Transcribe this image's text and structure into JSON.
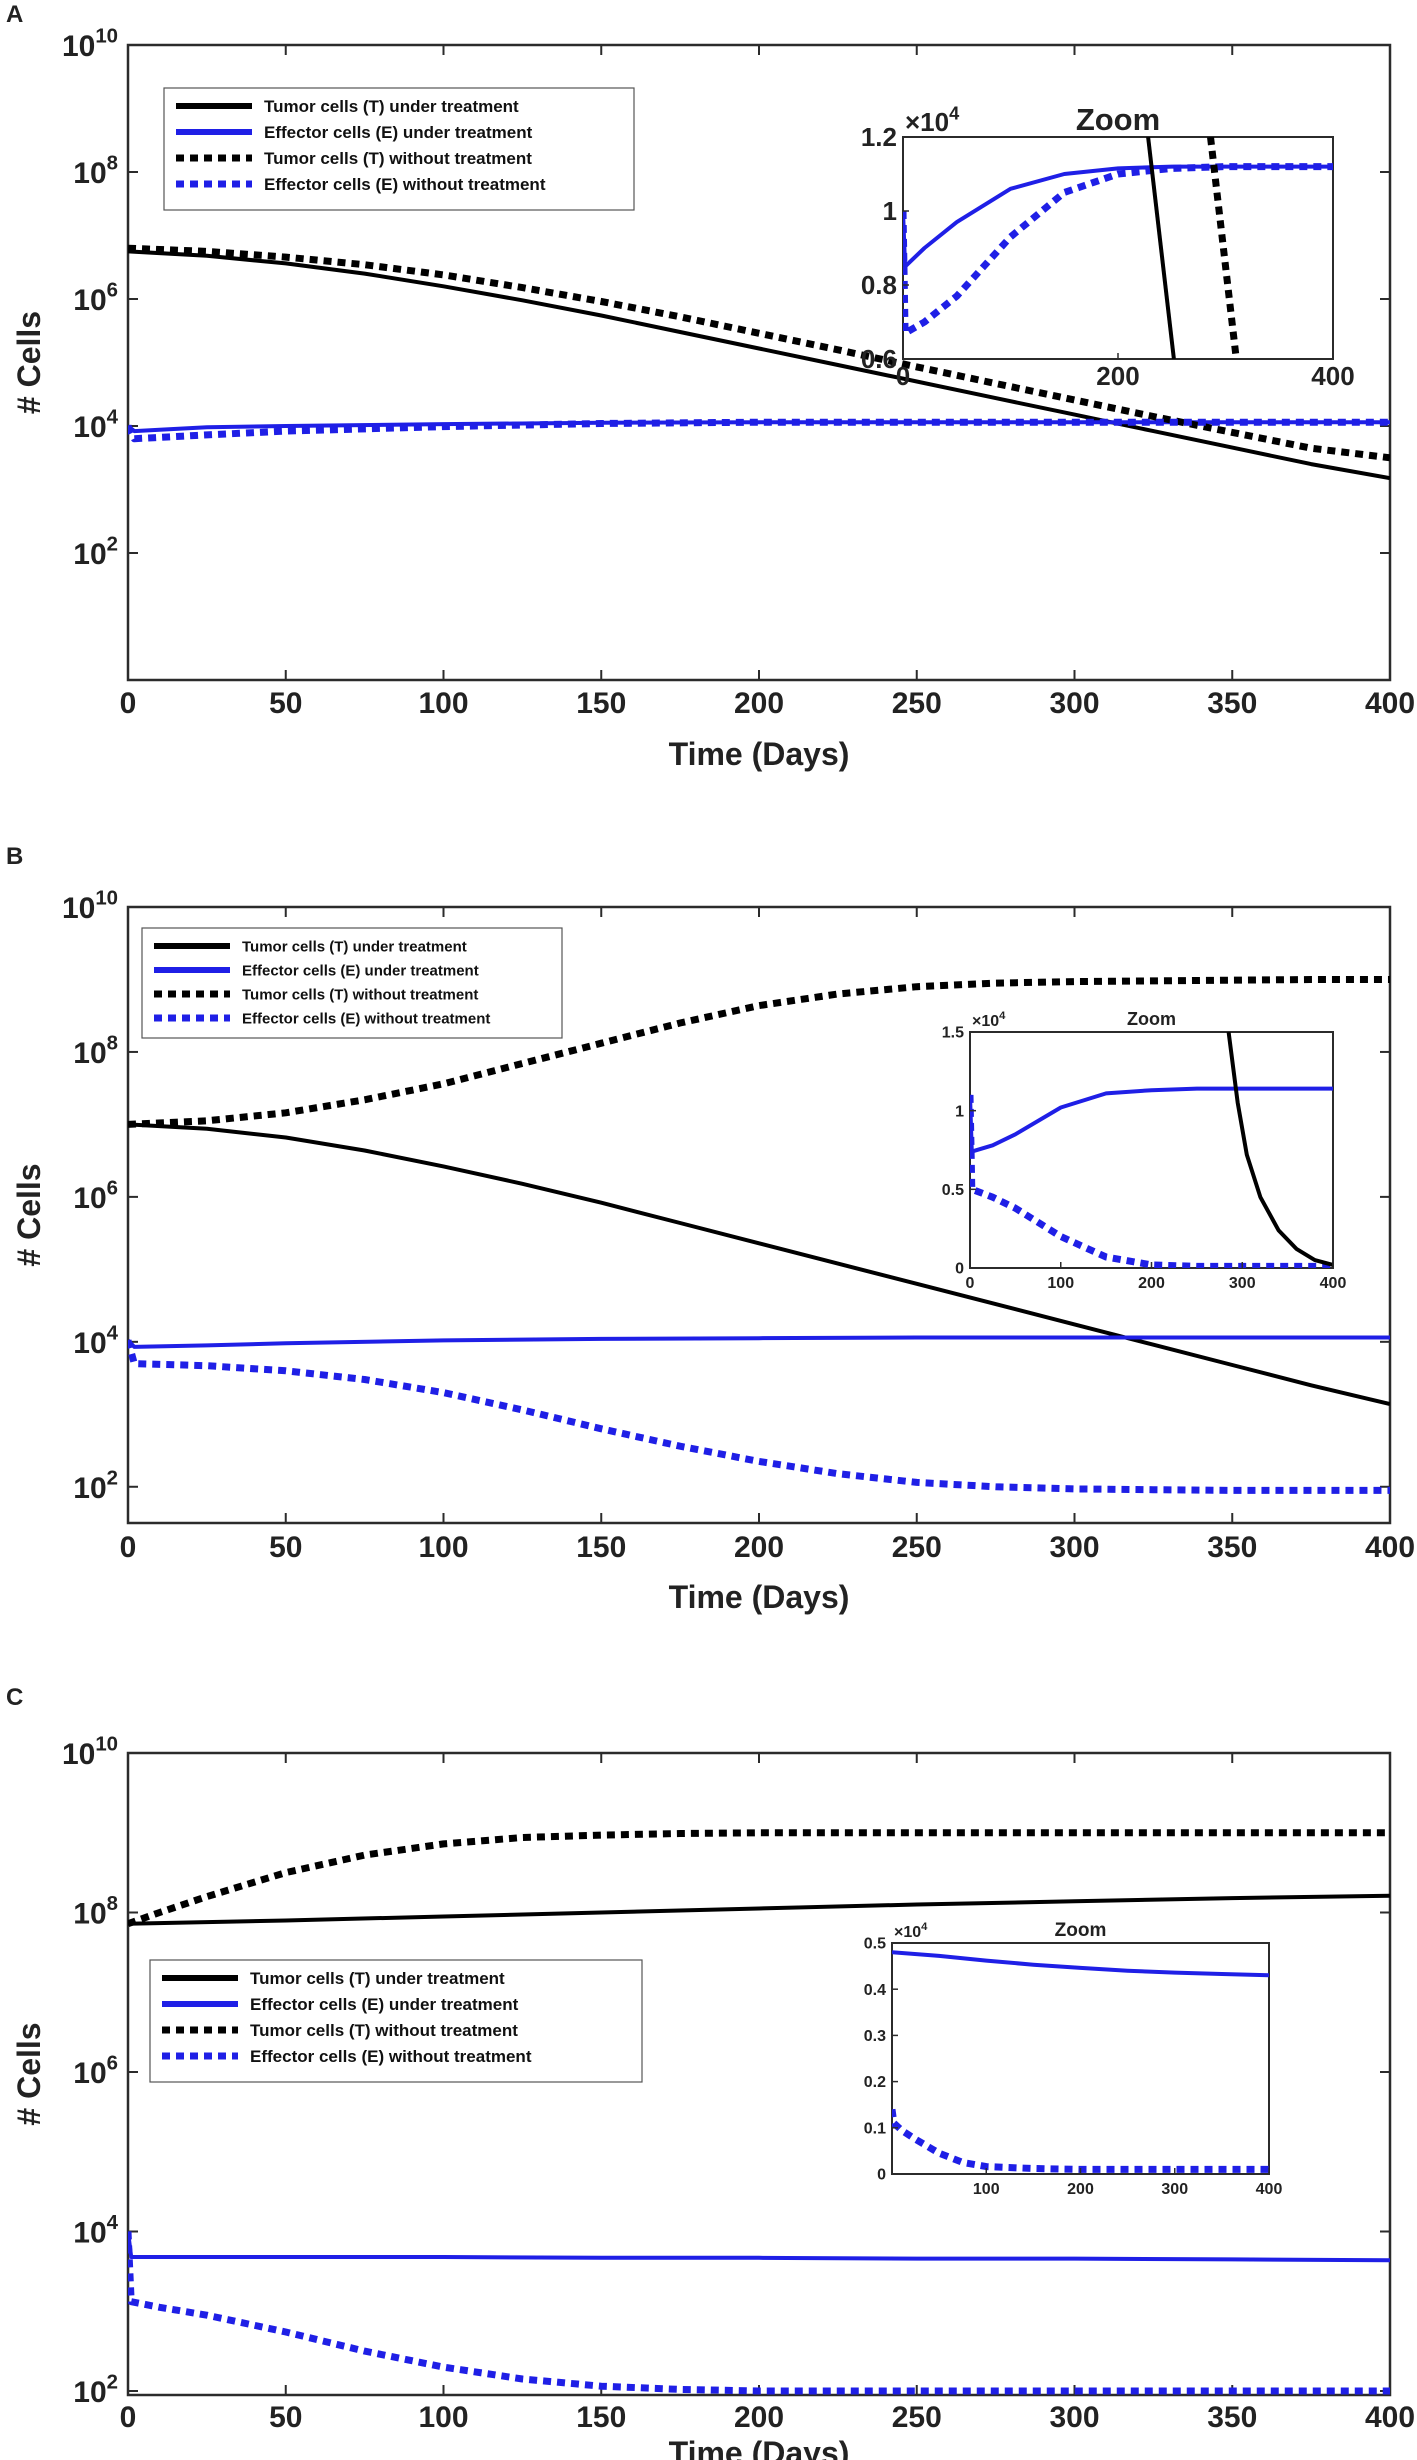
{
  "colors": {
    "tumor": "#000000",
    "effector": "#1f1fe6",
    "axis": "#2b2b2b"
  },
  "chart_data": [
    {
      "panel": "A",
      "type": "line",
      "yscale": "log",
      "xlim": [
        0,
        400
      ],
      "ylim_exp": [
        0,
        10
      ],
      "xticks": [
        "0",
        "50",
        "100",
        "150",
        "200",
        "250",
        "300",
        "350",
        "400"
      ],
      "yticks": [
        {
          "base": "10",
          "exp": "2"
        },
        {
          "base": "10",
          "exp": "4"
        },
        {
          "base": "10",
          "exp": "6"
        },
        {
          "base": "10",
          "exp": "8"
        },
        {
          "base": "10",
          "exp": "10"
        }
      ],
      "xlabel": "Time (Days)",
      "ylabel": "# Cells",
      "legend_position": "top-left",
      "legend": [
        "Tumor cells (T) under treatment",
        "Effector cells (E) under treatment",
        "Tumor cells (T) without treatment",
        "Effector cells (E) without treatment"
      ],
      "series": [
        {
          "name": "Tumor cells (T) under treatment",
          "style": "solid",
          "color": "black",
          "x": [
            0,
            25,
            50,
            75,
            100,
            125,
            150,
            175,
            200,
            225,
            250,
            275,
            300,
            325,
            350,
            375,
            400
          ],
          "y_log10": [
            6.75,
            6.68,
            6.56,
            6.4,
            6.2,
            5.98,
            5.74,
            5.48,
            5.22,
            4.96,
            4.7,
            4.44,
            4.18,
            3.92,
            3.66,
            3.4,
            3.18
          ]
        },
        {
          "name": "Effector cells (E) under treatment",
          "style": "solid",
          "color": "blue",
          "x": [
            0,
            2,
            10,
            25,
            50,
            100,
            150,
            200,
            250,
            300,
            350,
            400
          ],
          "y_log10": [
            4.0,
            3.92,
            3.94,
            3.98,
            4.0,
            4.03,
            4.05,
            4.06,
            4.06,
            4.06,
            4.06,
            4.06
          ]
        },
        {
          "name": "Tumor cells (T) without treatment",
          "style": "dotted",
          "color": "black",
          "x": [
            0,
            25,
            50,
            75,
            100,
            125,
            150,
            175,
            200,
            225,
            250,
            275,
            300,
            325,
            350,
            375,
            400
          ],
          "y_log10": [
            6.8,
            6.75,
            6.66,
            6.54,
            6.38,
            6.18,
            5.96,
            5.72,
            5.46,
            5.2,
            4.93,
            4.67,
            4.41,
            4.15,
            3.9,
            3.65,
            3.5
          ]
        },
        {
          "name": "Effector cells (E) without treatment",
          "style": "dotted",
          "color": "blue",
          "x": [
            0,
            2,
            10,
            25,
            50,
            100,
            150,
            200,
            250,
            300,
            350,
            400
          ],
          "y_log10": [
            4.0,
            3.8,
            3.82,
            3.86,
            3.92,
            3.99,
            4.04,
            4.06,
            4.06,
            4.06,
            4.06,
            4.06
          ]
        }
      ],
      "inset": {
        "title": "Zoom",
        "multiplier": {
          "base": "10",
          "exp": "4"
        },
        "xlim": [
          0,
          400
        ],
        "ylim": [
          0.6,
          1.2
        ],
        "xticks": [
          "0",
          "200",
          "400"
        ],
        "yticks": [
          "0.6",
          "0.8",
          "1",
          "1.2"
        ],
        "series": [
          {
            "style": "solid",
            "color": "blue",
            "x": [
              0,
              2,
              20,
              50,
              100,
              150,
              200,
              250,
              300,
              400
            ],
            "y": [
              1.0,
              0.85,
              0.9,
              0.97,
              1.06,
              1.1,
              1.115,
              1.12,
              1.12,
              1.12
            ]
          },
          {
            "style": "dotted",
            "color": "blue",
            "x": [
              0,
              2,
              20,
              50,
              100,
              150,
              200,
              250,
              300,
              400
            ],
            "y": [
              1.0,
              0.67,
              0.7,
              0.77,
              0.93,
              1.05,
              1.1,
              1.115,
              1.12,
              1.12
            ]
          },
          {
            "style": "solid",
            "color": "black",
            "x": [
              228,
              252
            ],
            "y": [
              1.2,
              0.6
            ]
          },
          {
            "style": "dotted",
            "color": "black",
            "x": [
              286,
              310
            ],
            "y": [
              1.2,
              0.6
            ]
          }
        ]
      }
    },
    {
      "panel": "B",
      "type": "line",
      "yscale": "log",
      "xlim": [
        0,
        400
      ],
      "ylim_exp": [
        1.5,
        10
      ],
      "xticks": [
        "0",
        "50",
        "100",
        "150",
        "200",
        "250",
        "300",
        "350",
        "400"
      ],
      "yticks": [
        {
          "base": "10",
          "exp": "2"
        },
        {
          "base": "10",
          "exp": "4"
        },
        {
          "base": "10",
          "exp": "6"
        },
        {
          "base": "10",
          "exp": "8"
        },
        {
          "base": "10",
          "exp": "10"
        }
      ],
      "xlabel": "Time (Days)",
      "ylabel": "# Cells",
      "legend_position": "top-left",
      "legend": [
        "Tumor cells (T) under treatment",
        "Effector cells (E) under treatment",
        "Tumor cells (T) without treatment",
        "Effector cells (E) without treatment"
      ],
      "series": [
        {
          "name": "Tumor cells (T) under treatment",
          "style": "solid",
          "color": "black",
          "x": [
            0,
            25,
            50,
            75,
            100,
            125,
            150,
            175,
            200,
            225,
            250,
            275,
            300,
            325,
            350,
            375,
            400
          ],
          "y_log10": [
            7.0,
            6.94,
            6.82,
            6.64,
            6.42,
            6.18,
            5.92,
            5.64,
            5.36,
            5.08,
            4.8,
            4.52,
            4.24,
            3.96,
            3.68,
            3.4,
            3.14
          ]
        },
        {
          "name": "Effector cells (E) under treatment",
          "style": "solid",
          "color": "blue",
          "x": [
            0,
            2,
            25,
            50,
            100,
            150,
            200,
            250,
            300,
            350,
            400
          ],
          "y_log10": [
            4.02,
            3.93,
            3.95,
            3.98,
            4.02,
            4.04,
            4.05,
            4.06,
            4.06,
            4.06,
            4.06
          ]
        },
        {
          "name": "Tumor cells (T) without treatment",
          "style": "dotted",
          "color": "black",
          "x": [
            0,
            25,
            50,
            75,
            100,
            125,
            150,
            175,
            200,
            225,
            250,
            275,
            300,
            325,
            350,
            375,
            400
          ],
          "y_log10": [
            7.0,
            7.05,
            7.16,
            7.34,
            7.56,
            7.84,
            8.12,
            8.4,
            8.64,
            8.8,
            8.9,
            8.95,
            8.97,
            8.98,
            8.99,
            9.0,
            9.0
          ]
        },
        {
          "name": "Effector cells (E) without treatment",
          "style": "dotted",
          "color": "blue",
          "x": [
            0,
            2,
            25,
            50,
            75,
            100,
            125,
            150,
            175,
            200,
            225,
            250,
            275,
            300,
            325,
            350,
            375,
            400
          ],
          "y_log10": [
            4.02,
            3.7,
            3.67,
            3.6,
            3.48,
            3.3,
            3.06,
            2.8,
            2.56,
            2.35,
            2.18,
            2.06,
            2.0,
            1.97,
            1.96,
            1.95,
            1.95,
            1.95
          ]
        }
      ],
      "inset": {
        "title": "Zoom",
        "multiplier": {
          "base": "10",
          "exp": "4"
        },
        "xlim": [
          0,
          400
        ],
        "ylim": [
          0,
          1.5
        ],
        "xticks": [
          "0",
          "100",
          "200",
          "300",
          "400"
        ],
        "yticks": [
          "0",
          "0.5",
          "1",
          "1.5"
        ],
        "series": [
          {
            "style": "solid",
            "color": "blue",
            "x": [
              0,
              2,
              25,
              50,
              100,
              150,
              200,
              250,
              300,
              400
            ],
            "y": [
              1.1,
              0.74,
              0.78,
              0.85,
              1.02,
              1.11,
              1.13,
              1.14,
              1.14,
              1.14
            ]
          },
          {
            "style": "dotted",
            "color": "blue",
            "x": [
              0,
              2,
              25,
              50,
              100,
              150,
              200,
              250,
              300,
              400
            ],
            "y": [
              1.1,
              0.5,
              0.45,
              0.38,
              0.2,
              0.07,
              0.02,
              0.01,
              0.01,
              0.01
            ]
          },
          {
            "style": "solid",
            "color": "black",
            "x": [
              285,
              295,
              305,
              320,
              340,
              360,
              380,
              400
            ],
            "y": [
              1.5,
              1.05,
              0.72,
              0.45,
              0.24,
              0.12,
              0.05,
              0.02
            ]
          }
        ]
      }
    },
    {
      "panel": "C",
      "type": "line",
      "yscale": "log",
      "xlim": [
        0,
        400
      ],
      "ylim_exp": [
        1.95,
        10
      ],
      "xticks": [
        "0",
        "50",
        "100",
        "150",
        "200",
        "250",
        "300",
        "350",
        "400"
      ],
      "yticks": [
        {
          "base": "10",
          "exp": "2"
        },
        {
          "base": "10",
          "exp": "4"
        },
        {
          "base": "10",
          "exp": "6"
        },
        {
          "base": "10",
          "exp": "8"
        },
        {
          "base": "10",
          "exp": "10"
        }
      ],
      "xlabel": "Time (Days)",
      "ylabel": "# Cells",
      "legend_position": "middle-left",
      "legend": [
        "Tumor cells (T) under treatment",
        "Effector cells (E) under treatment",
        "Tumor cells (T) without treatment",
        "Effector cells (E) without treatment"
      ],
      "series": [
        {
          "name": "Tumor cells (T) under treatment",
          "style": "solid",
          "color": "black",
          "x": [
            0,
            50,
            100,
            150,
            200,
            250,
            300,
            350,
            400
          ],
          "y_log10": [
            7.86,
            7.9,
            7.95,
            8.0,
            8.05,
            8.1,
            8.14,
            8.18,
            8.21
          ]
        },
        {
          "name": "Effector cells (E) under treatment",
          "style": "solid",
          "color": "blue",
          "x": [
            0,
            1,
            50,
            100,
            150,
            200,
            250,
            300,
            350,
            400
          ],
          "y_log10": [
            4.0,
            3.68,
            3.68,
            3.68,
            3.67,
            3.67,
            3.66,
            3.66,
            3.65,
            3.64
          ]
        },
        {
          "name": "Tumor cells (T) without treatment",
          "style": "dotted",
          "color": "black",
          "x": [
            0,
            10,
            25,
            50,
            75,
            100,
            125,
            150,
            175,
            200,
            250,
            300,
            350,
            400
          ],
          "y_log10": [
            7.86,
            8.0,
            8.2,
            8.5,
            8.72,
            8.86,
            8.94,
            8.97,
            8.99,
            9.0,
            9.0,
            9.0,
            9.0,
            9.0
          ]
        },
        {
          "name": "Effector cells (E) without treatment",
          "style": "dotted",
          "color": "blue",
          "x": [
            0,
            1,
            10,
            25,
            50,
            75,
            100,
            125,
            150,
            175,
            200,
            250,
            300,
            350,
            400
          ],
          "y_log10": [
            4.0,
            3.12,
            3.05,
            2.95,
            2.74,
            2.5,
            2.3,
            2.15,
            2.06,
            2.02,
            2.0,
            2.0,
            2.0,
            2.0,
            2.0
          ]
        }
      ],
      "inset": {
        "title": "Zoom",
        "multiplier": {
          "base": "10",
          "exp": "4"
        },
        "xlim": [
          0,
          400
        ],
        "ylim": [
          0,
          0.5
        ],
        "xticks": [
          "100",
          "200",
          "300",
          "400"
        ],
        "yticks": [
          "0",
          "0.1",
          "0.2",
          "0.3",
          "0.4",
          "0.5"
        ],
        "series": [
          {
            "style": "solid",
            "color": "blue",
            "x": [
              0,
              50,
              100,
              150,
              200,
              250,
              300,
              350,
              400
            ],
            "y": [
              0.48,
              0.472,
              0.462,
              0.453,
              0.446,
              0.44,
              0.436,
              0.433,
              0.43
            ]
          },
          {
            "style": "dotted",
            "color": "blue",
            "x": [
              0,
              2,
              10,
              25,
              50,
              75,
              100,
              150,
              200,
              300,
              400
            ],
            "y": [
              0.14,
              0.11,
              0.095,
              0.075,
              0.045,
              0.025,
              0.016,
              0.012,
              0.01,
              0.01,
              0.01
            ]
          }
        ]
      }
    }
  ],
  "panels": {
    "a": {
      "letter": "A"
    },
    "b": {
      "letter": "B"
    },
    "c": {
      "letter": "C"
    }
  }
}
